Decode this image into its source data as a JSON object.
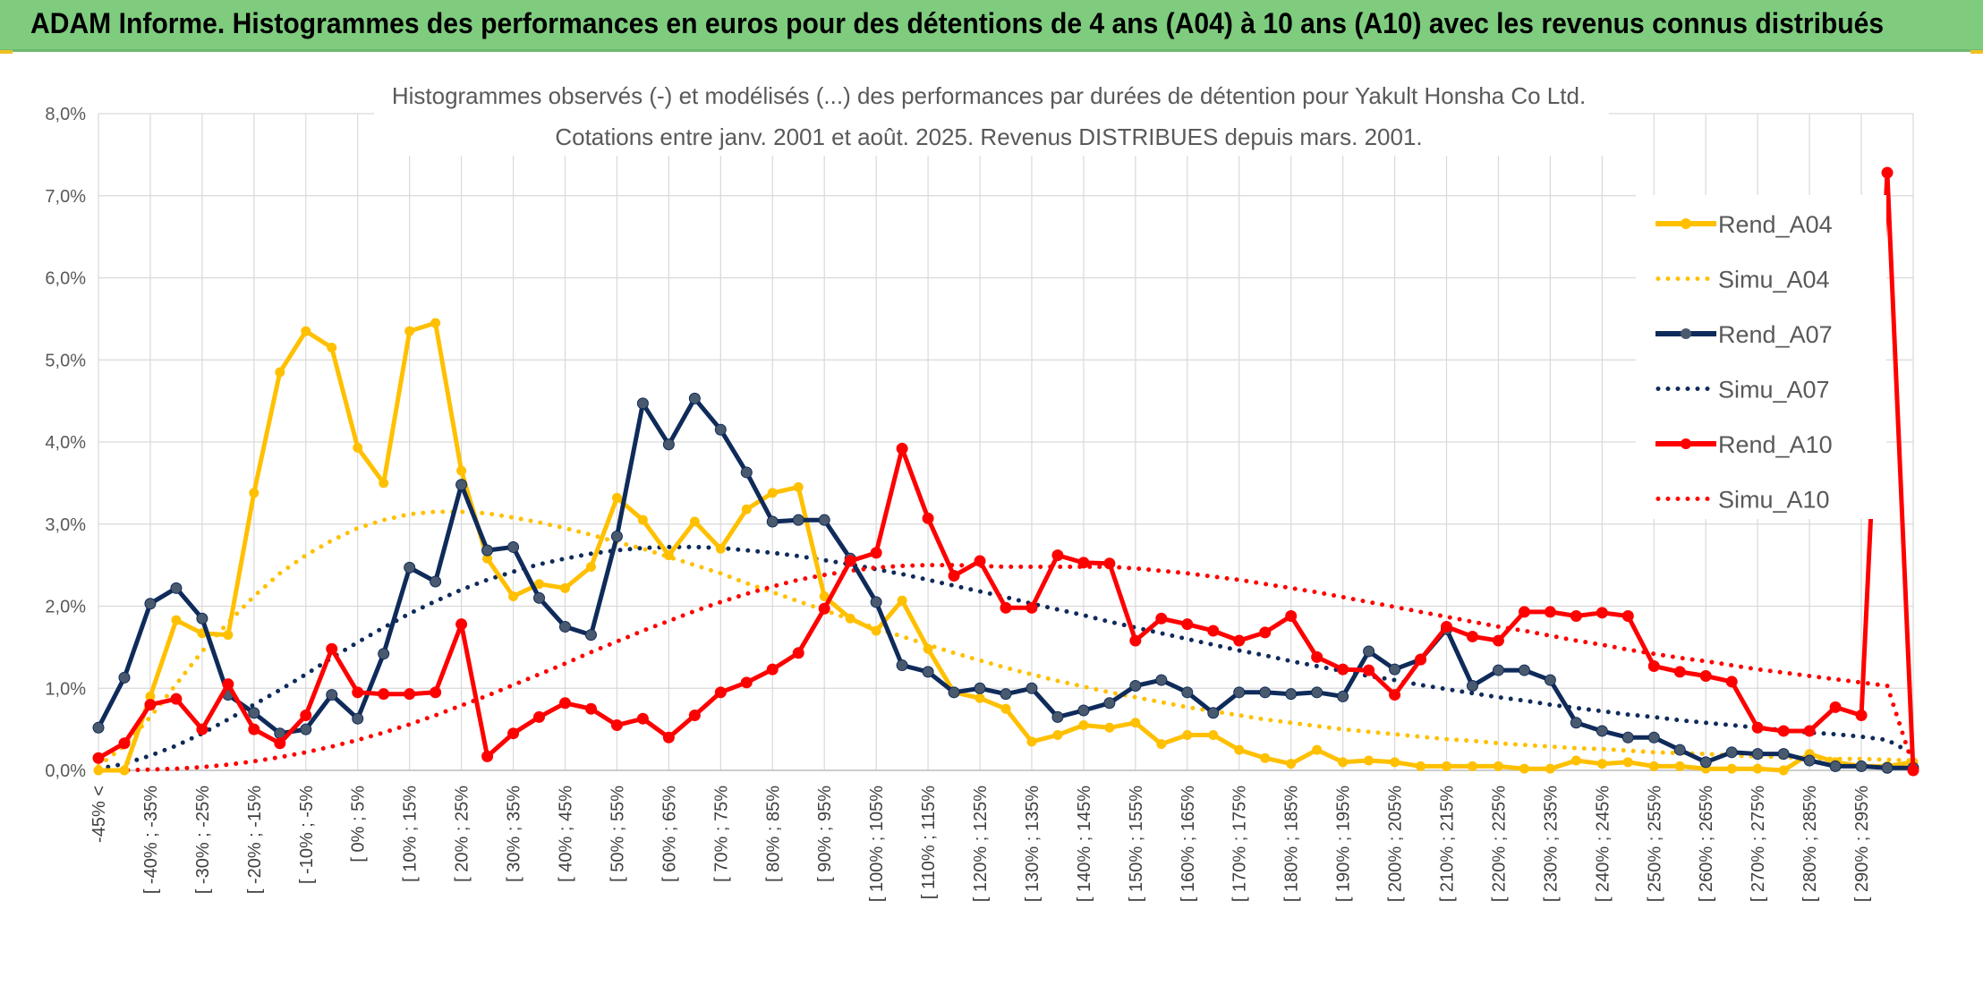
{
  "header": {
    "title": "ADAM Informe. Histogrammes des performances en euros pour des détentions de 4 ans (A04) à 10 ans (A10) avec les revenus connus distribués"
  },
  "colors": {
    "banner": "#7fcc7f",
    "A04": "#ffc000",
    "A07": "#0f2b5a",
    "A10": "#ff0000",
    "grid": "#d9d9d9"
  },
  "chart_data": {
    "type": "line",
    "title": "Histogrammes observés (-) et modélisés (...) des performances par durées de détention pour Yakult Honsha Co Ltd.",
    "subtitle": "Cotations entre janv. 2001 et août. 2025. Revenus DISTRIBUES depuis mars. 2001.",
    "ylim": [
      0,
      8
    ],
    "y_ticks": [
      "0,0%",
      "1,0%",
      "2,0%",
      "3,0%",
      "4,0%",
      "5,0%",
      "6,0%",
      "7,0%",
      "8,0%"
    ],
    "grid": true,
    "legend_position": "right",
    "category_labels": [
      "-45% <",
      "[ -40% ; -35%",
      "[ -30% ; -25%",
      "[ -20% ; -15%",
      "[ -10% ; -5%",
      "[ 0% ; 5%",
      "[ 10% ; 15%",
      "[ 20% ; 25%",
      "[ 30% ; 35%",
      "[ 40% ; 45%",
      "[ 50% ; 55%",
      "[ 60% ; 65%",
      "[ 70% ; 75%",
      "[ 80% ; 85%",
      "[ 90% ; 95%",
      "[ 100% ; 105%",
      "[ 110% ; 115%",
      "[ 120% ; 125%",
      "[ 130% ; 135%",
      "[ 140% ; 145%",
      "[ 150% ; 155%",
      "[ 160% ; 165%",
      "[ 170% ; 175%",
      "[ 180% ; 185%",
      "[ 190% ; 195%",
      "[ 200% ; 205%",
      "[ 210% ; 215%",
      "[ 220% ; 225%",
      "[ 230% ; 235%",
      "[ 240% ; 245%",
      "[ 250% ; 255%",
      "[ 260% ; 265%",
      "[ 270% ; 275%",
      "[ 280% ; 285%",
      "[ 290% ; 295%"
    ],
    "series": [
      {
        "name": "Rend_A04",
        "style": "solid",
        "color": "#ffc000",
        "values": [
          0.0,
          0.0,
          0.9,
          1.83,
          1.67,
          1.65,
          3.38,
          4.85,
          5.35,
          5.15,
          3.93,
          3.5,
          5.35,
          5.45,
          3.65,
          2.58,
          2.12,
          2.27,
          2.22,
          2.48,
          3.32,
          3.05,
          2.62,
          3.03,
          2.7,
          3.18,
          3.38,
          3.45,
          2.12,
          1.85,
          1.7,
          2.07,
          1.48,
          0.95,
          0.88,
          0.75,
          0.35,
          0.43,
          0.55,
          0.52,
          0.58,
          0.32,
          0.43,
          0.43,
          0.25,
          0.15,
          0.08,
          0.25,
          0.1,
          0.12,
          0.1,
          0.05,
          0.05,
          0.05,
          0.05,
          0.02,
          0.02,
          0.12,
          0.08,
          0.1,
          0.05,
          0.05,
          0.02,
          0.02,
          0.02,
          0.0,
          0.2,
          0.1,
          0.05,
          0.05,
          0.1
        ]
      },
      {
        "name": "Simu_A04",
        "style": "dotted",
        "color": "#ffc000",
        "values": [
          0.05,
          0.3,
          0.65,
          1.05,
          1.45,
          1.8,
          2.12,
          2.4,
          2.62,
          2.8,
          2.95,
          3.05,
          3.12,
          3.15,
          3.15,
          3.13,
          3.08,
          3.02,
          2.95,
          2.87,
          2.78,
          2.7,
          2.6,
          2.5,
          2.4,
          2.28,
          2.17,
          2.06,
          1.95,
          1.84,
          1.73,
          1.63,
          1.53,
          1.43,
          1.34,
          1.25,
          1.17,
          1.09,
          1.02,
          0.95,
          0.89,
          0.83,
          0.77,
          0.72,
          0.67,
          0.62,
          0.58,
          0.54,
          0.5,
          0.47,
          0.44,
          0.41,
          0.38,
          0.36,
          0.33,
          0.31,
          0.29,
          0.27,
          0.26,
          0.24,
          0.22,
          0.21,
          0.2,
          0.18,
          0.17,
          0.16,
          0.15,
          0.14,
          0.14,
          0.13,
          0.12
        ]
      },
      {
        "name": "Rend_A07",
        "style": "solid",
        "color": "#0f2b5a",
        "values": [
          0.52,
          1.13,
          2.03,
          2.22,
          1.85,
          0.92,
          0.7,
          0.45,
          0.5,
          0.92,
          0.63,
          1.42,
          2.47,
          2.3,
          3.48,
          2.68,
          2.72,
          2.1,
          1.75,
          1.65,
          2.85,
          4.47,
          3.97,
          4.53,
          4.15,
          3.63,
          3.03,
          3.05,
          3.05,
          2.58,
          2.05,
          1.28,
          1.2,
          0.95,
          1.0,
          0.93,
          1.0,
          0.65,
          0.73,
          0.82,
          1.03,
          1.1,
          0.95,
          0.7,
          0.95,
          0.95,
          0.93,
          0.95,
          0.9,
          1.45,
          1.23,
          1.35,
          1.72,
          1.03,
          1.22,
          1.22,
          1.1,
          0.58,
          0.48,
          0.4,
          0.4,
          0.25,
          0.1,
          0.22,
          0.2,
          0.2,
          0.12,
          0.05,
          0.05,
          0.03,
          0.03
        ]
      },
      {
        "name": "Simu_A07",
        "style": "dotted",
        "color": "#0f2b5a",
        "values": [
          0.02,
          0.08,
          0.18,
          0.3,
          0.45,
          0.62,
          0.8,
          0.98,
          1.17,
          1.37,
          1.56,
          1.74,
          1.91,
          2.06,
          2.2,
          2.32,
          2.42,
          2.51,
          2.58,
          2.64,
          2.68,
          2.71,
          2.72,
          2.72,
          2.71,
          2.68,
          2.65,
          2.61,
          2.56,
          2.51,
          2.45,
          2.39,
          2.32,
          2.25,
          2.18,
          2.11,
          2.03,
          1.96,
          1.89,
          1.81,
          1.74,
          1.67,
          1.6,
          1.53,
          1.46,
          1.4,
          1.33,
          1.27,
          1.21,
          1.15,
          1.1,
          1.04,
          0.99,
          0.94,
          0.89,
          0.85,
          0.8,
          0.76,
          0.72,
          0.68,
          0.65,
          0.61,
          0.58,
          0.55,
          0.52,
          0.49,
          0.46,
          0.44,
          0.41,
          0.37,
          0.2
        ]
      },
      {
        "name": "Rend_A10",
        "style": "solid",
        "color": "#ff0000",
        "values": [
          0.15,
          0.33,
          0.8,
          0.87,
          0.5,
          1.05,
          0.5,
          0.33,
          0.67,
          1.48,
          0.95,
          0.93,
          0.93,
          0.95,
          1.78,
          0.17,
          0.45,
          0.65,
          0.82,
          0.75,
          0.55,
          0.63,
          0.4,
          0.67,
          0.95,
          1.07,
          1.23,
          1.43,
          1.97,
          2.55,
          2.65,
          3.92,
          3.07,
          2.37,
          2.55,
          1.98,
          1.98,
          2.62,
          2.53,
          2.52,
          1.58,
          1.85,
          1.78,
          1.7,
          1.58,
          1.68,
          1.88,
          1.38,
          1.23,
          1.22,
          0.92,
          1.35,
          1.75,
          1.63,
          1.58,
          1.93,
          1.93,
          1.88,
          1.92,
          1.88,
          1.27,
          1.2,
          1.15,
          1.08,
          0.52,
          0.48,
          0.48,
          0.77,
          0.67,
          7.28,
          0.0
        ]
      },
      {
        "name": "Simu_A10",
        "style": "dotted",
        "color": "#ff0000",
        "values": [
          0.0,
          0.0,
          0.01,
          0.02,
          0.04,
          0.07,
          0.11,
          0.16,
          0.22,
          0.29,
          0.37,
          0.46,
          0.56,
          0.67,
          0.79,
          0.91,
          1.04,
          1.17,
          1.3,
          1.44,
          1.57,
          1.7,
          1.82,
          1.94,
          2.05,
          2.15,
          2.24,
          2.32,
          2.38,
          2.43,
          2.47,
          2.49,
          2.5,
          2.5,
          2.49,
          2.48,
          2.48,
          2.48,
          2.48,
          2.48,
          2.46,
          2.43,
          2.4,
          2.36,
          2.32,
          2.27,
          2.22,
          2.17,
          2.11,
          2.05,
          1.99,
          1.93,
          1.87,
          1.81,
          1.75,
          1.7,
          1.64,
          1.58,
          1.53,
          1.47,
          1.42,
          1.37,
          1.33,
          1.28,
          1.23,
          1.19,
          1.15,
          1.11,
          1.07,
          1.03,
          0.05
        ]
      }
    ]
  }
}
